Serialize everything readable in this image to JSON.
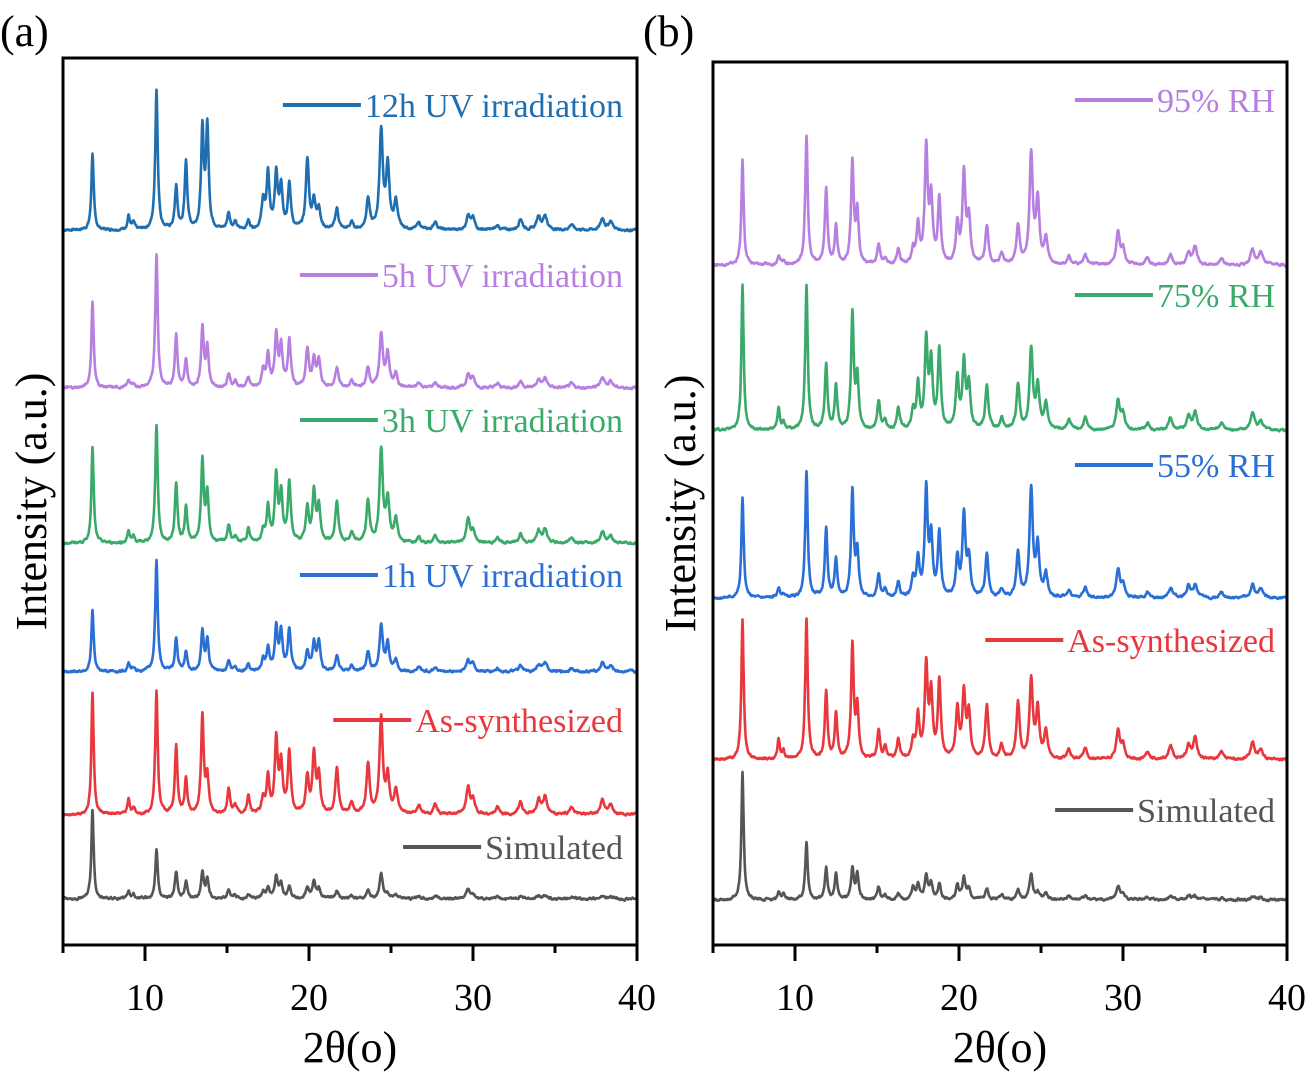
{
  "chart_data": [
    {
      "type": "line",
      "panel_label": "(a)",
      "xlabel": "2θ(o)",
      "ylabel": "Intensity (a.u.)",
      "xlim": [
        5,
        40
      ],
      "x_ticks": [
        10,
        20,
        30,
        40
      ],
      "x_minor_ticks": [
        5,
        15,
        25,
        35
      ],
      "y_ticks": [],
      "grid": false,
      "legend_placement": "inline-right",
      "peak_positions": [
        6.8,
        9.0,
        9.3,
        10.7,
        11.9,
        12.5,
        13.5,
        13.8,
        15.1,
        15.5,
        16.3,
        17.2,
        17.5,
        18.0,
        18.3,
        18.8,
        19.9,
        20.3,
        20.6,
        21.7,
        22.6,
        23.6,
        24.4,
        24.8,
        25.3,
        26.7,
        27.7,
        29.7,
        30.0,
        31.5,
        32.9,
        34.0,
        34.4,
        36.0,
        37.9,
        38.4
      ],
      "series": [
        {
          "name": "12h UV irradiation",
          "color": "#1f6fb0",
          "offset": 80.6,
          "scale": 15.8,
          "intensities": [
            0.55,
            0.1,
            0.05,
            1.0,
            0.3,
            0.48,
            0.7,
            0.72,
            0.12,
            0.05,
            0.06,
            0.2,
            0.4,
            0.38,
            0.3,
            0.32,
            0.5,
            0.2,
            0.15,
            0.15,
            0.05,
            0.22,
            0.7,
            0.45,
            0.2,
            0.05,
            0.06,
            0.1,
            0.08,
            0.03,
            0.08,
            0.1,
            0.1,
            0.04,
            0.08,
            0.06
          ]
        },
        {
          "name": "5h UV irradiation",
          "color": "#b77fe0",
          "offset": 62.8,
          "scale": 15.0,
          "intensities": [
            0.65,
            0.06,
            0.03,
            1.0,
            0.4,
            0.2,
            0.45,
            0.3,
            0.1,
            0.05,
            0.07,
            0.12,
            0.25,
            0.38,
            0.3,
            0.35,
            0.28,
            0.2,
            0.2,
            0.15,
            0.05,
            0.15,
            0.4,
            0.25,
            0.1,
            0.04,
            0.04,
            0.1,
            0.07,
            0.03,
            0.05,
            0.06,
            0.07,
            0.03,
            0.08,
            0.05
          ]
        },
        {
          "name": "3h UV irradiation",
          "color": "#3aaa6a",
          "offset": 45.3,
          "scale": 13.3,
          "intensities": [
            0.82,
            0.1,
            0.05,
            1.0,
            0.5,
            0.3,
            0.7,
            0.4,
            0.15,
            0.05,
            0.12,
            0.1,
            0.3,
            0.55,
            0.4,
            0.5,
            0.28,
            0.42,
            0.3,
            0.35,
            0.08,
            0.35,
            0.78,
            0.35,
            0.2,
            0.06,
            0.06,
            0.2,
            0.1,
            0.04,
            0.08,
            0.1,
            0.12,
            0.05,
            0.1,
            0.06
          ]
        },
        {
          "name": "1h UV irradiation",
          "color": "#2a6fd6",
          "offset": 30.8,
          "scale": 12.6,
          "intensities": [
            0.55,
            0.08,
            0.03,
            1.0,
            0.3,
            0.18,
            0.35,
            0.28,
            0.1,
            0.04,
            0.07,
            0.1,
            0.2,
            0.38,
            0.35,
            0.38,
            0.18,
            0.25,
            0.25,
            0.15,
            0.05,
            0.17,
            0.4,
            0.25,
            0.1,
            0.04,
            0.04,
            0.1,
            0.07,
            0.03,
            0.05,
            0.06,
            0.08,
            0.03,
            0.08,
            0.05
          ]
        },
        {
          "name": "As-synthesized",
          "color": "#e8383d",
          "offset": 14.7,
          "scale": 13.8,
          "intensities": [
            1.0,
            0.12,
            0.05,
            1.0,
            0.55,
            0.28,
            0.8,
            0.3,
            0.2,
            0.08,
            0.15,
            0.12,
            0.3,
            0.6,
            0.4,
            0.5,
            0.3,
            0.48,
            0.3,
            0.38,
            0.1,
            0.4,
            0.78,
            0.3,
            0.2,
            0.07,
            0.08,
            0.22,
            0.12,
            0.06,
            0.1,
            0.12,
            0.14,
            0.06,
            0.12,
            0.08
          ]
        },
        {
          "name": "Simulated",
          "color": "#555555",
          "offset": 5.2,
          "scale": 10.0,
          "intensities": [
            1.0,
            0.08,
            0.05,
            0.55,
            0.3,
            0.2,
            0.3,
            0.22,
            0.1,
            0.03,
            0.05,
            0.08,
            0.12,
            0.25,
            0.15,
            0.15,
            0.12,
            0.2,
            0.1,
            0.08,
            0.04,
            0.08,
            0.28,
            0.05,
            0.05,
            0.03,
            0.03,
            0.11,
            0.04,
            0.02,
            0.03,
            0.03,
            0.03,
            0.02,
            0.03,
            0.02
          ]
        }
      ]
    },
    {
      "type": "line",
      "panel_label": "(b)",
      "xlabel": "2θ(o)",
      "ylabel": "Intensity (a.u.)",
      "xlim": [
        5,
        40
      ],
      "x_ticks": [
        10,
        20,
        30,
        40
      ],
      "x_minor_ticks": [
        5,
        15,
        25,
        35
      ],
      "y_ticks": [],
      "grid": false,
      "legend_placement": "inline-right",
      "peak_positions": [
        6.8,
        9.0,
        9.3,
        10.7,
        11.9,
        12.5,
        13.5,
        13.8,
        15.1,
        15.5,
        16.3,
        17.2,
        17.5,
        18.0,
        18.3,
        18.8,
        19.9,
        20.3,
        20.6,
        21.7,
        22.6,
        23.6,
        24.4,
        24.8,
        25.3,
        26.7,
        27.7,
        29.7,
        30.0,
        31.5,
        32.9,
        34.0,
        34.4,
        36.0,
        37.9,
        38.4
      ],
      "series": [
        {
          "name": "95% RH",
          "color": "#b77fe0",
          "offset": 77.0,
          "scale": 14.5,
          "intensities": [
            0.82,
            0.08,
            0.03,
            1.0,
            0.6,
            0.3,
            0.8,
            0.4,
            0.15,
            0.05,
            0.12,
            0.1,
            0.3,
            0.9,
            0.5,
            0.5,
            0.3,
            0.7,
            0.35,
            0.3,
            0.08,
            0.3,
            0.85,
            0.5,
            0.2,
            0.07,
            0.08,
            0.25,
            0.12,
            0.05,
            0.08,
            0.1,
            0.14,
            0.05,
            0.12,
            0.1
          ]
        },
        {
          "name": "75% RH",
          "color": "#3aaa6a",
          "offset": 58.3,
          "scale": 16.4,
          "intensities": [
            1.0,
            0.15,
            0.05,
            1.0,
            0.45,
            0.3,
            0.8,
            0.35,
            0.2,
            0.06,
            0.15,
            0.12,
            0.3,
            0.6,
            0.45,
            0.55,
            0.35,
            0.45,
            0.3,
            0.3,
            0.08,
            0.3,
            0.55,
            0.3,
            0.18,
            0.07,
            0.08,
            0.2,
            0.1,
            0.05,
            0.08,
            0.1,
            0.12,
            0.05,
            0.12,
            0.06
          ]
        },
        {
          "name": "55% RH",
          "color": "#2a6fd6",
          "offset": 39.3,
          "scale": 14.2,
          "intensities": [
            0.8,
            0.08,
            0.03,
            1.0,
            0.55,
            0.3,
            0.85,
            0.35,
            0.18,
            0.06,
            0.12,
            0.15,
            0.3,
            0.85,
            0.45,
            0.5,
            0.3,
            0.65,
            0.3,
            0.35,
            0.06,
            0.35,
            0.85,
            0.4,
            0.18,
            0.06,
            0.08,
            0.22,
            0.1,
            0.04,
            0.08,
            0.1,
            0.1,
            0.05,
            0.1,
            0.07
          ]
        },
        {
          "name": "As-synthesized",
          "color": "#e8383d",
          "offset": 21.0,
          "scale": 15.9,
          "intensities": [
            1.0,
            0.15,
            0.05,
            1.0,
            0.48,
            0.32,
            0.8,
            0.35,
            0.2,
            0.08,
            0.14,
            0.12,
            0.3,
            0.65,
            0.45,
            0.55,
            0.35,
            0.45,
            0.32,
            0.38,
            0.1,
            0.4,
            0.55,
            0.35,
            0.2,
            0.07,
            0.08,
            0.2,
            0.1,
            0.05,
            0.1,
            0.1,
            0.15,
            0.05,
            0.12,
            0.07
          ]
        },
        {
          "name": "Simulated",
          "color": "#555555",
          "offset": 5.1,
          "scale": 14.5,
          "intensities": [
            1.0,
            0.06,
            0.04,
            0.45,
            0.25,
            0.2,
            0.25,
            0.2,
            0.1,
            0.03,
            0.05,
            0.1,
            0.12,
            0.18,
            0.12,
            0.12,
            0.1,
            0.17,
            0.08,
            0.08,
            0.04,
            0.08,
            0.2,
            0.05,
            0.05,
            0.03,
            0.03,
            0.1,
            0.04,
            0.02,
            0.03,
            0.03,
            0.03,
            0.02,
            0.03,
            0.02
          ]
        }
      ]
    }
  ]
}
